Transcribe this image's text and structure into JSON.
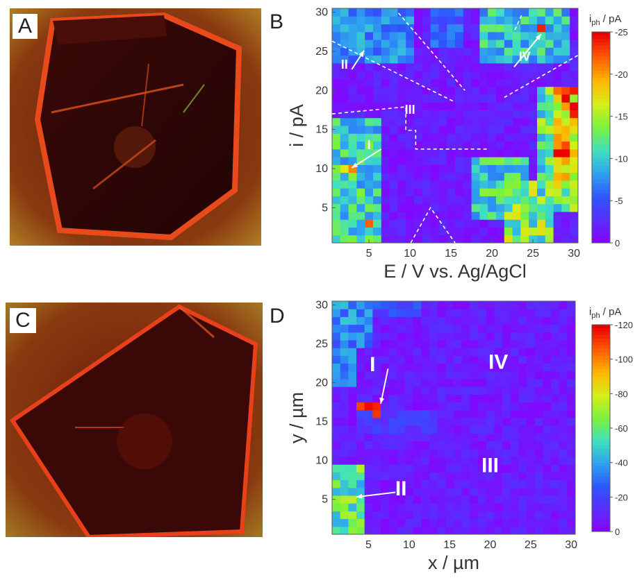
{
  "panels": {
    "A": {
      "letter": "A"
    },
    "B": {
      "letter": "B"
    },
    "C": {
      "letter": "C"
    },
    "D": {
      "letter": "D"
    }
  },
  "colors": {
    "scale": [
      "#8a00ff",
      "#5b2cff",
      "#2f55ff",
      "#2ea0f0",
      "#3fe0c0",
      "#7bf23c",
      "#d6ee1a",
      "#ffb400",
      "#ff5a00",
      "#e80000"
    ],
    "photo_dark": "#2a0706",
    "photo_edge": "#e8401a",
    "photo_glow": "#c8b020"
  },
  "chart_data": [
    {
      "panel": "B",
      "type": "heatmap",
      "xlabel": "E / V vs. Ag/AgCl",
      "ylabel": "i / pA",
      "colorbar_title_main": "i",
      "colorbar_title_sub": "ph",
      "colorbar_title_unit": " / pA",
      "colorbar_ticks": [
        "-25",
        "-20",
        "-15",
        "-10",
        "-5",
        "0"
      ],
      "colorbar_range": [
        0,
        -25
      ],
      "x_ticks": [
        "5",
        "10",
        "15",
        "20",
        "25",
        "30"
      ],
      "y_ticks": [
        "5",
        "10",
        "15",
        "20",
        "25",
        "30"
      ],
      "xlim": [
        0.5,
        30.5
      ],
      "ylim": [
        0.5,
        30.5
      ],
      "grid": false,
      "colorbar_position": "right",
      "region_labels": [
        {
          "text": "I",
          "x": 5,
          "y": 12.5
        },
        {
          "text": "II",
          "x": 2,
          "y": 22.8
        },
        {
          "text": "III",
          "x": 10,
          "y": 17
        },
        {
          "text": "IV",
          "x": 24,
          "y": 23.8
        }
      ],
      "hotspots": [
        {
          "x": 2,
          "y": 10,
          "value": -17
        },
        {
          "x": 3,
          "y": 10,
          "value": -21
        },
        {
          "x": 4,
          "y": 27,
          "value": -10
        },
        {
          "x": 26,
          "y": 28,
          "value": -24
        },
        {
          "x": 5,
          "y": 3,
          "value": -22
        }
      ],
      "regions": [
        {
          "x": [
            1,
            6
          ],
          "y": [
            1,
            16
          ],
          "value": -13
        },
        {
          "x": [
            1,
            10
          ],
          "y": [
            24,
            30
          ],
          "value": -9
        },
        {
          "x": [
            18,
            24
          ],
          "y": [
            4,
            11
          ],
          "value": -13
        },
        {
          "x": [
            22,
            27
          ],
          "y": [
            1,
            8
          ],
          "value": -16
        },
        {
          "x": [
            26,
            30
          ],
          "y": [
            5,
            20
          ],
          "value": -15
        },
        {
          "x": [
            28,
            30
          ],
          "y": [
            8,
            20
          ],
          "value": -24
        },
        {
          "x": [
            19,
            29
          ],
          "y": [
            24,
            30
          ],
          "value": -12
        },
        {
          "x": [
            13,
            16
          ],
          "y": [
            26,
            30
          ],
          "value": -7
        }
      ]
    },
    {
      "panel": "D",
      "type": "heatmap",
      "xlabel": "x / µm",
      "ylabel": "y / µm",
      "colorbar_title_main": "i",
      "colorbar_title_sub": "ph",
      "colorbar_title_unit": " / pA",
      "colorbar_ticks": [
        "-120",
        "-100",
        "-80",
        "-60",
        "-40",
        "-20",
        "0"
      ],
      "colorbar_range": [
        0,
        -120
      ],
      "x_ticks": [
        "5",
        "10",
        "15",
        "20",
        "25",
        "30"
      ],
      "y_ticks": [
        "5",
        "10",
        "15",
        "20",
        "25",
        "30"
      ],
      "xlim": [
        0.5,
        30.5
      ],
      "ylim": [
        0.5,
        30.5
      ],
      "grid": false,
      "colorbar_position": "right",
      "region_labels": [
        {
          "text": "I",
          "x": 5.5,
          "y": 21.5
        },
        {
          "text": "II",
          "x": 9,
          "y": 5.5
        },
        {
          "text": "III",
          "x": 20,
          "y": 8.5
        },
        {
          "text": "IV",
          "x": 21,
          "y": 21.8
        }
      ],
      "hotspots": [
        {
          "x": 5,
          "y": 17,
          "value": -118
        },
        {
          "x": 6,
          "y": 17,
          "value": -115
        },
        {
          "x": 6,
          "y": 16,
          "value": -112
        },
        {
          "x": 4,
          "y": 17,
          "value": -110
        },
        {
          "x": 4,
          "y": 9,
          "value": -75
        }
      ],
      "regions": [
        {
          "x": [
            1,
            4
          ],
          "y": [
            1,
            9
          ],
          "value": -70
        },
        {
          "x": [
            1,
            5
          ],
          "y": [
            25,
            30
          ],
          "value": -45
        },
        {
          "x": [
            1,
            3
          ],
          "y": [
            20,
            25
          ],
          "value": -40
        },
        {
          "x": [
            4,
            13
          ],
          "y": [
            14,
            16
          ],
          "value": -22
        },
        {
          "x": [
            6,
            11
          ],
          "y": [
            29,
            30
          ],
          "value": -28
        }
      ]
    }
  ]
}
